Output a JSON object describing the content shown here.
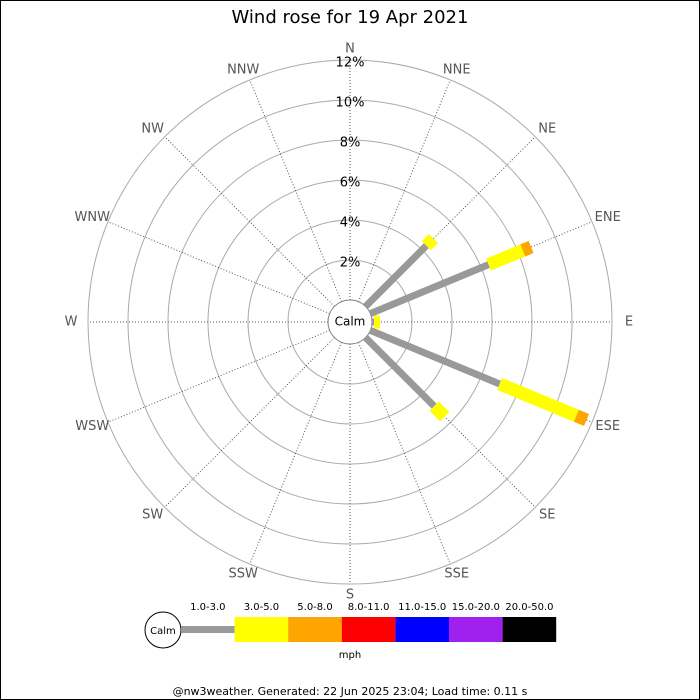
{
  "chart_data": {
    "type": "windrose",
    "title": "Wind rose for 19 Apr 2021",
    "directions": [
      "N",
      "NNE",
      "NE",
      "ENE",
      "E",
      "ESE",
      "SE",
      "SSE",
      "S",
      "SSW",
      "SW",
      "WSW",
      "W",
      "WNW",
      "NW",
      "NNW"
    ],
    "rlim": [
      0,
      12
    ],
    "rticks": [
      {
        "value": 2,
        "label": "2%"
      },
      {
        "value": 4,
        "label": "4%"
      },
      {
        "value": 6,
        "label": "6%"
      },
      {
        "value": 8,
        "label": "8%"
      },
      {
        "value": 10,
        "label": "10%"
      },
      {
        "value": 12,
        "label": "12%"
      }
    ],
    "calm_label": "Calm",
    "units": "mph",
    "series": [
      {
        "name": "1.0-3.0",
        "color": "#999999",
        "values": [
          0,
          0,
          4.3,
          6.4,
          0.1,
          7.0,
          4.85,
          0,
          0,
          0,
          0,
          0,
          0,
          0,
          0,
          0
        ]
      },
      {
        "name": "3.0-5.0",
        "color": "#ffff00",
        "values": [
          0,
          0,
          0.5,
          1.85,
          0.3,
          4.15,
          0.75,
          0,
          0,
          0,
          0,
          0,
          0,
          0,
          0,
          0
        ]
      },
      {
        "name": "5.0-8.0",
        "color": "#ffa500",
        "values": [
          0,
          0,
          0,
          0.45,
          0,
          0.55,
          0,
          0,
          0,
          0,
          0,
          0,
          0,
          0,
          0,
          0
        ]
      },
      {
        "name": "8.0-11.0",
        "color": "#ff0000",
        "values": [
          0,
          0,
          0,
          0,
          0,
          0,
          0,
          0,
          0,
          0,
          0,
          0,
          0,
          0,
          0,
          0
        ]
      },
      {
        "name": "11.0-15.0",
        "color": "#0000ff",
        "values": [
          0,
          0,
          0,
          0,
          0,
          0,
          0,
          0,
          0,
          0,
          0,
          0,
          0,
          0,
          0,
          0
        ]
      },
      {
        "name": "15.0-20.0",
        "color": "#a020f0",
        "values": [
          0,
          0,
          0,
          0,
          0,
          0,
          0,
          0,
          0,
          0,
          0,
          0,
          0,
          0,
          0,
          0
        ]
      },
      {
        "name": "20.0-50.0",
        "color": "#000000",
        "values": [
          0,
          0,
          0,
          0,
          0,
          0,
          0,
          0,
          0,
          0,
          0,
          0,
          0,
          0,
          0,
          0
        ]
      }
    ],
    "footer": "@nw3weather. Generated: 22 Jun 2025 23:04; Load time: 0.11 s"
  }
}
